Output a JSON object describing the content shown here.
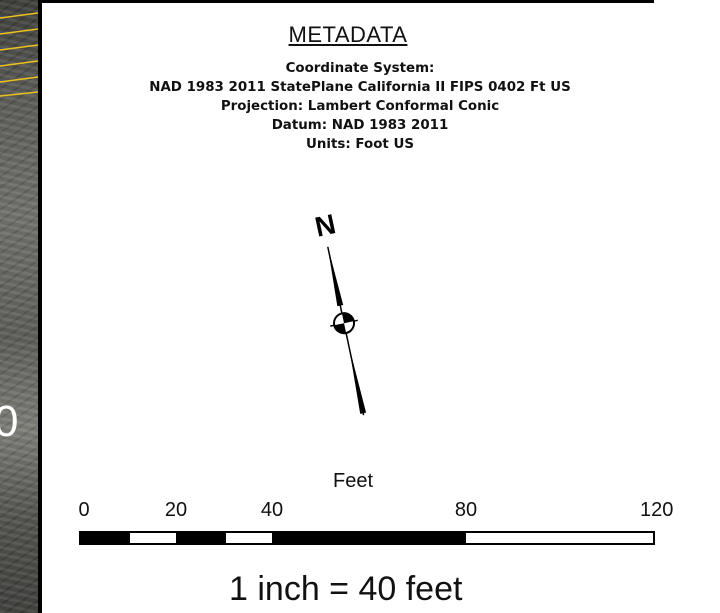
{
  "background_image": {
    "label_fragment": "0"
  },
  "metadata": {
    "title": "METADATA",
    "lines": [
      "Coordinate System:",
      "NAD 1983 2011 StatePlane California II FIPS 0402 Ft US",
      "Projection: Lambert Conformal Conic",
      "Datum: NAD 1983 2011",
      "Units: Foot US"
    ]
  },
  "north_arrow": {
    "letter": "N",
    "icon": "north-arrow-icon"
  },
  "scale_bar": {
    "unit_label": "Feet",
    "ticks": [
      "0",
      "20",
      "40",
      "80",
      "120"
    ],
    "statement": "1 inch = 40 feet"
  },
  "colors": {
    "ink": "#000000",
    "paper": "#ffffff",
    "accent_lines": "#e8c320"
  }
}
